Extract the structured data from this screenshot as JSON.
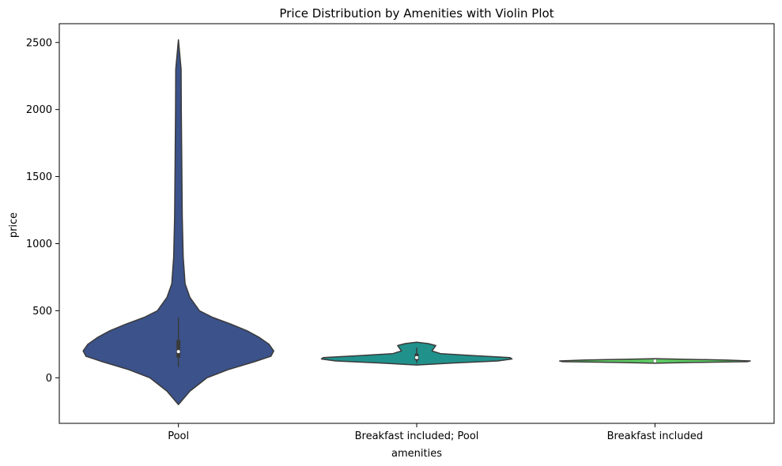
{
  "chart_data": {
    "type": "violin",
    "title": "Price Distribution by Amenities with Violin Plot",
    "xlabel": "amenities",
    "ylabel": "price",
    "ylim": [
      -340,
      2640
    ],
    "yticks": [
      0,
      500,
      1000,
      1500,
      2000,
      2500
    ],
    "grid": false,
    "legend": "none",
    "categories": [
      "Pool",
      "Breakfast included; Pool",
      "Breakfast included"
    ],
    "colors": [
      "#3b528b",
      "#21918c",
      "#5ec962"
    ],
    "violins": [
      {
        "category": "Pool",
        "min": -200,
        "max": 2520,
        "q1": 150,
        "median": 195,
        "q3": 280,
        "whisker_low": 80,
        "whisker_high": 450,
        "profile": [
          [
            -200,
            0
          ],
          [
            -100,
            0.12
          ],
          [
            0,
            0.3
          ],
          [
            60,
            0.52
          ],
          [
            120,
            0.8
          ],
          [
            160,
            0.97
          ],
          [
            200,
            1.0
          ],
          [
            250,
            0.95
          ],
          [
            300,
            0.85
          ],
          [
            350,
            0.72
          ],
          [
            400,
            0.55
          ],
          [
            450,
            0.36
          ],
          [
            500,
            0.22
          ],
          [
            600,
            0.12
          ],
          [
            700,
            0.07
          ],
          [
            900,
            0.05
          ],
          [
            1200,
            0.04
          ],
          [
            1600,
            0.035
          ],
          [
            2000,
            0.03
          ],
          [
            2300,
            0.028
          ],
          [
            2520,
            0
          ]
        ]
      },
      {
        "category": "Breakfast included; Pool",
        "min": 95,
        "max": 265,
        "q1": 130,
        "median": 150,
        "q3": 180,
        "whisker_low": 110,
        "whisker_high": 225,
        "profile": [
          [
            95,
            0
          ],
          [
            110,
            0.38
          ],
          [
            125,
            0.85
          ],
          [
            140,
            1.0
          ],
          [
            150,
            0.98
          ],
          [
            165,
            0.6
          ],
          [
            180,
            0.25
          ],
          [
            200,
            0.16
          ],
          [
            220,
            0.18
          ],
          [
            240,
            0.2
          ],
          [
            255,
            0.12
          ],
          [
            265,
            0
          ]
        ]
      },
      {
        "category": "Breakfast included",
        "min": 108,
        "max": 142,
        "q1": 118,
        "median": 125,
        "q3": 132,
        "whisker_low": 112,
        "whisker_high": 138,
        "profile": [
          [
            108,
            0
          ],
          [
            114,
            0.4
          ],
          [
            120,
            0.97
          ],
          [
            125,
            1.0
          ],
          [
            132,
            0.75
          ],
          [
            138,
            0.3
          ],
          [
            142,
            0
          ]
        ]
      }
    ]
  }
}
